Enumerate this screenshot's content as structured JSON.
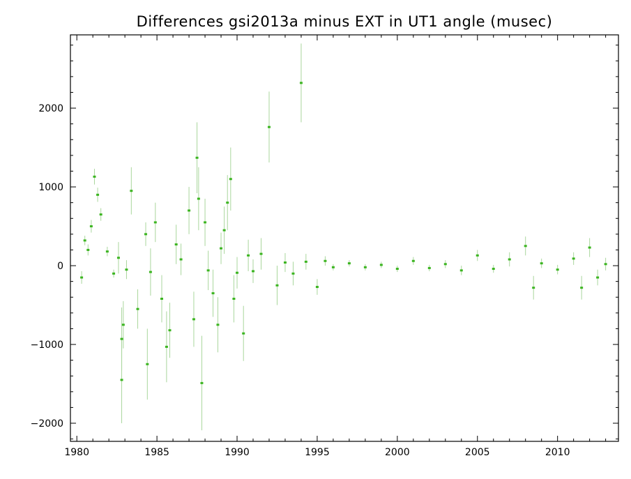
{
  "chart_data": {
    "type": "scatter",
    "title": "Differences gsi2013a minus EXT in UT1 angle   (musec)",
    "xlabel": "",
    "ylabel": "",
    "xlim": [
      1979.6,
      2013.8
    ],
    "ylim": [
      -2230,
      2930
    ],
    "x_ticks": [
      1980,
      1985,
      1990,
      1995,
      2000,
      2005,
      2010
    ],
    "x_tick_labels": [
      "1980",
      "1985",
      "1990",
      "1995",
      "2000",
      "2005",
      "2010"
    ],
    "y_ticks": [
      -2000,
      -1000,
      0,
      1000,
      2000
    ],
    "y_tick_labels": [
      "−2000",
      "−1000",
      "0",
      "1000",
      "2000"
    ],
    "grid": false,
    "colors": {
      "points": "#3cb521",
      "error_bars": "#a9d69c"
    },
    "series": [
      {
        "points": [
          [
            1980.3,
            -150,
            80
          ],
          [
            1980.5,
            320,
            60
          ],
          [
            1980.7,
            200,
            70
          ],
          [
            1980.9,
            500,
            80
          ],
          [
            1981.1,
            1130,
            100
          ],
          [
            1981.3,
            900,
            90
          ],
          [
            1981.5,
            650,
            80
          ],
          [
            1981.9,
            180,
            60
          ],
          [
            1982.3,
            -100,
            50
          ],
          [
            1982.6,
            100,
            200
          ],
          [
            1982.8,
            -1450,
            550
          ],
          [
            1982.8,
            -930,
            400
          ],
          [
            1982.9,
            -750,
            300
          ],
          [
            1983.1,
            -50,
            120
          ],
          [
            1983.4,
            950,
            300
          ],
          [
            1983.8,
            -550,
            250
          ],
          [
            1984.3,
            400,
            150
          ],
          [
            1984.4,
            -1250,
            450
          ],
          [
            1984.6,
            -80,
            300
          ],
          [
            1984.9,
            550,
            250
          ],
          [
            1985.3,
            -420,
            300
          ],
          [
            1985.6,
            -1030,
            450
          ],
          [
            1985.8,
            -820,
            350
          ],
          [
            1986.2,
            270,
            250
          ],
          [
            1986.5,
            80,
            200
          ],
          [
            1987.0,
            700,
            300
          ],
          [
            1987.3,
            -680,
            350
          ],
          [
            1987.5,
            1370,
            450
          ],
          [
            1987.6,
            850,
            400
          ],
          [
            1987.8,
            -1490,
            600
          ],
          [
            1988.0,
            550,
            300
          ],
          [
            1988.2,
            -60,
            250
          ],
          [
            1988.5,
            -350,
            300
          ],
          [
            1988.8,
            -750,
            350
          ],
          [
            1989.0,
            220,
            200
          ],
          [
            1989.2,
            450,
            300
          ],
          [
            1989.4,
            800,
            350
          ],
          [
            1989.6,
            1100,
            400
          ],
          [
            1989.8,
            -420,
            300
          ],
          [
            1990.0,
            -90,
            200
          ],
          [
            1990.4,
            -860,
            350
          ],
          [
            1990.7,
            130,
            200
          ],
          [
            1991.0,
            -70,
            150
          ],
          [
            1991.5,
            150,
            200
          ],
          [
            1992.0,
            1760,
            450
          ],
          [
            1992.5,
            -250,
            250
          ],
          [
            1993.0,
            40,
            120
          ],
          [
            1993.5,
            -100,
            150
          ],
          [
            1994.0,
            2320,
            500
          ],
          [
            1994.3,
            50,
            100
          ],
          [
            1995.0,
            -270,
            100
          ],
          [
            1995.5,
            60,
            60
          ],
          [
            1996.0,
            -20,
            40
          ],
          [
            1997.0,
            30,
            40
          ],
          [
            1998.0,
            -20,
            40
          ],
          [
            1999.0,
            10,
            40
          ],
          [
            2000.0,
            -40,
            40
          ],
          [
            2001.0,
            60,
            50
          ],
          [
            2002.0,
            -30,
            40
          ],
          [
            2003.0,
            20,
            50
          ],
          [
            2004.0,
            -60,
            60
          ],
          [
            2005.0,
            130,
            70
          ],
          [
            2006.0,
            -40,
            50
          ],
          [
            2007.0,
            80,
            90
          ],
          [
            2008.0,
            250,
            120
          ],
          [
            2008.5,
            -280,
            150
          ],
          [
            2009.0,
            30,
            60
          ],
          [
            2010.0,
            -50,
            60
          ],
          [
            2011.0,
            90,
            80
          ],
          [
            2011.5,
            -280,
            150
          ],
          [
            2012.0,
            230,
            120
          ],
          [
            2012.5,
            -150,
            100
          ],
          [
            2013.0,
            20,
            80
          ]
        ]
      }
    ]
  }
}
